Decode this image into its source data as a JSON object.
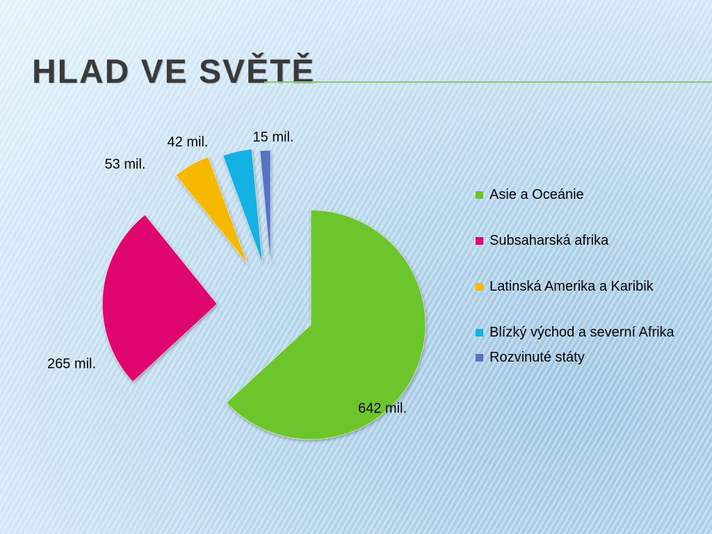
{
  "chart_data": {
    "type": "pie",
    "title": "HLAD VE SVĚTĚ",
    "categories": [
      "Asie a Oceánie",
      "Subsaharská afrika",
      "Latinská Amerika a Karibik",
      "Blízký východ a severní Afrika",
      "Rozvinuté státy"
    ],
    "values": [
      642,
      265,
      53,
      42,
      15
    ],
    "value_labels": [
      "642 mil.",
      "265 mil.",
      "53 mil.",
      "42 mil.",
      "15 mil."
    ],
    "colors": [
      "#6cc52a",
      "#e0066f",
      "#f6b800",
      "#14b2e4",
      "#5672c4"
    ],
    "legend": "right"
  }
}
